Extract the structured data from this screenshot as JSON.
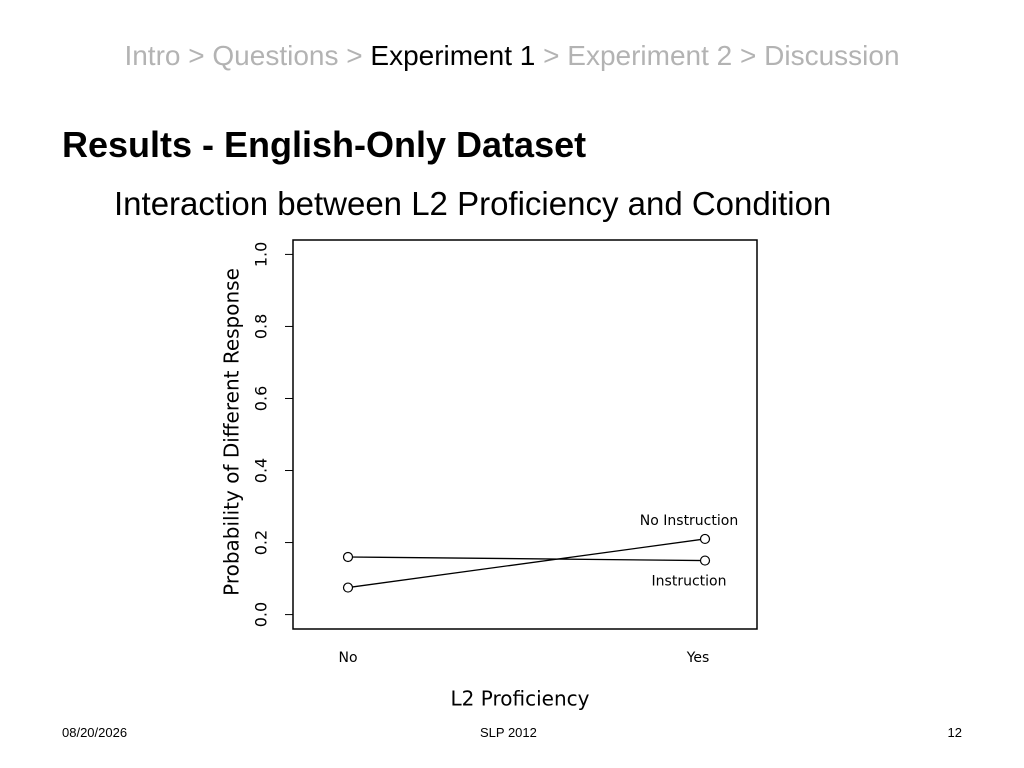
{
  "breadcrumb": {
    "items": [
      "Intro",
      "Questions",
      "Experiment 1",
      "Experiment 2",
      "Discussion"
    ],
    "separator": ">",
    "active": 2
  },
  "heading": "Results - English-Only Dataset",
  "subtitle": "Interaction between L2 Proficiency and Condition",
  "footer": {
    "date": "08/20/2026",
    "center": "SLP 2012",
    "page": "12"
  },
  "chart_data": {
    "type": "line",
    "x_label": "L2 Proficiency",
    "y_label": "Probability of Different Response",
    "categories": [
      "No",
      "Yes"
    ],
    "series": [
      {
        "name": "No Instruction",
        "color": "#000000",
        "values": [
          0.075,
          0.21
        ]
      },
      {
        "name": "Instruction",
        "color": "#000000",
        "values": [
          0.16,
          0.15
        ]
      }
    ],
    "ylim": [
      -0.04,
      1.04
    ],
    "yticks": [
      {
        "value": 0,
        "label": "0.0"
      },
      0.2,
      0.4,
      0.6,
      0.8,
      {
        "value": 1,
        "label": "1.0"
      }
    ]
  }
}
